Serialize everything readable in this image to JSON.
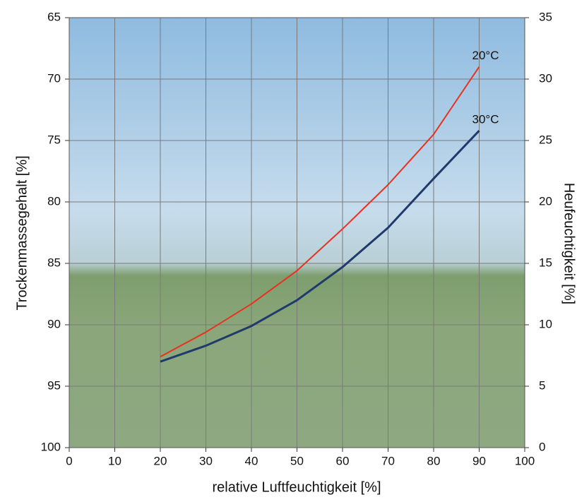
{
  "chart_data": {
    "type": "line",
    "x_label": "relative Luftfeuchtigkeit [%]",
    "y_label": "Trockenmassegehalt [%]",
    "y2_label": "Heufeuchtigkeit [%]",
    "x": [
      20,
      30,
      40,
      50,
      60,
      70,
      80,
      90
    ],
    "series": [
      {
        "name": "20°C",
        "color": "#e8321e",
        "values": [
          92.6,
          90.6,
          88.3,
          85.6,
          82.2,
          78.6,
          74.5,
          69.0
        ]
      },
      {
        "name": "30°C",
        "color": "#1f3a6b",
        "values": [
          93.0,
          91.7,
          90.1,
          88.0,
          85.3,
          82.1,
          78.1,
          74.2
        ]
      }
    ],
    "xlim": [
      0,
      100
    ],
    "xticks": [
      0,
      10,
      20,
      30,
      40,
      50,
      60,
      70,
      80,
      90,
      100
    ],
    "ylim": [
      100,
      65
    ],
    "yticks": [
      65,
      70,
      75,
      80,
      85,
      90,
      95,
      100
    ],
    "y2lim": [
      0,
      35
    ],
    "y2ticks": [
      0,
      5,
      10,
      15,
      20,
      25,
      30,
      35
    ],
    "grid": true
  }
}
